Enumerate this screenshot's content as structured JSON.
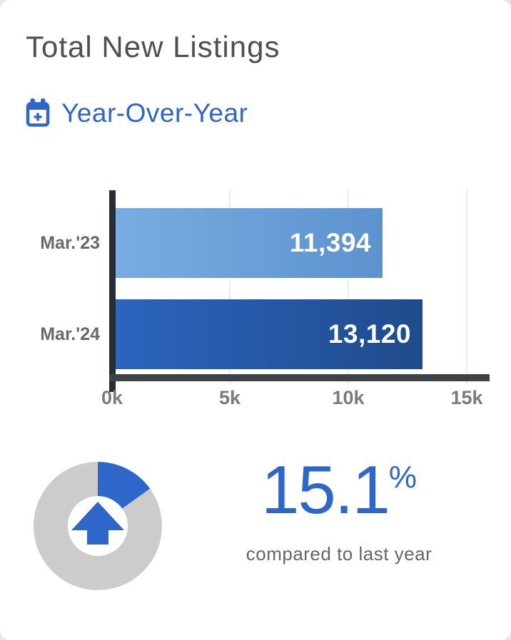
{
  "card": {
    "title": "Total New Listings",
    "subtitle": "Year-Over-Year"
  },
  "colors": {
    "accent": "#2f66c9",
    "donut_gray": "#cccccc",
    "axis_dark": "#272c37",
    "axis_gray": "#3e4247",
    "bar_light_from": "#79ade0",
    "bar_light_to": "#5c93cf",
    "bar_dark_from": "#2c64be",
    "bar_dark_to": "#1e4b8b"
  },
  "chart_data": [
    {
      "type": "bar",
      "orientation": "horizontal",
      "title": "Total New Listings",
      "subtitle": "Year-Over-Year",
      "categories": [
        "Mar.'23",
        "Mar.'24"
      ],
      "values": [
        11394,
        13120
      ],
      "value_labels": [
        "11,394",
        "13,120"
      ],
      "x_ticks": [
        "0k",
        "5k",
        "10k",
        "15k"
      ],
      "x_tick_values": [
        0,
        5000,
        10000,
        15000
      ],
      "xlim": [
        0,
        16000
      ],
      "grid": true,
      "legend": false,
      "bar_gradients": [
        [
          "#79ade0",
          "#5c93cf"
        ],
        [
          "#2c64be",
          "#1e4b8b"
        ]
      ]
    },
    {
      "type": "pie",
      "donut": true,
      "values": [
        15.1,
        84.9
      ],
      "labels": [
        "increase vs last year",
        "remainder"
      ],
      "colors": [
        "#2f66c9",
        "#cccccc"
      ],
      "center_icon": "up-arrow",
      "annotation": "15.1% compared to last year"
    }
  ],
  "kpi": {
    "value": "15.1",
    "unit": "%",
    "caption": "compared to last year",
    "direction": "up"
  }
}
